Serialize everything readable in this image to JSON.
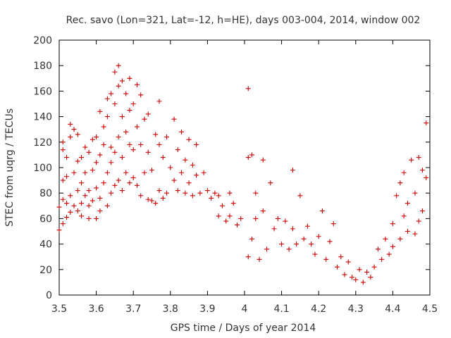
{
  "chart_data": {
    "type": "scatter",
    "title": "Rec. savo (Lon=321, Lat=-12, h=HE), days 003-004, 2014, window 002",
    "xlabel": "GPS time / Days of year 2014",
    "ylabel": "STEC from uqrg / TECUs",
    "xlim": [
      3.5,
      4.5
    ],
    "ylim": [
      0,
      200
    ],
    "xticks": [
      3.5,
      3.6,
      3.7,
      3.8,
      3.9,
      4.0,
      4.1,
      4.2,
      4.3,
      4.4,
      4.5
    ],
    "xtick_labels": [
      "3.5",
      "3.6",
      "3.7",
      "3.8",
      "3.9",
      "4",
      "4.1",
      "4.2",
      "4.3",
      "4.4",
      "4.5"
    ],
    "yticks": [
      0,
      20,
      40,
      60,
      80,
      100,
      120,
      140,
      160,
      180,
      200
    ],
    "ytick_labels": [
      "0",
      "20",
      "40",
      "60",
      "80",
      "100",
      "120",
      "140",
      "160",
      "180",
      "200"
    ],
    "grid": false,
    "marker": "plus",
    "series": [
      {
        "name": "STEC",
        "color": "#cc0000",
        "points": [
          [
            3.5,
            51
          ],
          [
            3.5,
            69
          ],
          [
            3.51,
            90
          ],
          [
            3.51,
            114
          ],
          [
            3.51,
            120
          ],
          [
            3.51,
            56
          ],
          [
            3.51,
            75
          ],
          [
            3.52,
            61
          ],
          [
            3.52,
            72
          ],
          [
            3.52,
            93
          ],
          [
            3.52,
            108
          ],
          [
            3.53,
            65
          ],
          [
            3.53,
            78
          ],
          [
            3.53,
            124
          ],
          [
            3.53,
            134
          ],
          [
            3.54,
            70
          ],
          [
            3.54,
            96
          ],
          [
            3.54,
            130
          ],
          [
            3.55,
            66
          ],
          [
            3.55,
            82
          ],
          [
            3.55,
            105
          ],
          [
            3.55,
            126
          ],
          [
            3.56,
            62
          ],
          [
            3.56,
            72
          ],
          [
            3.56,
            88
          ],
          [
            3.56,
            108
          ],
          [
            3.57,
            78
          ],
          [
            3.57,
            96
          ],
          [
            3.57,
            116
          ],
          [
            3.58,
            60
          ],
          [
            3.58,
            70
          ],
          [
            3.58,
            82
          ],
          [
            3.58,
            112
          ],
          [
            3.59,
            74
          ],
          [
            3.59,
            98
          ],
          [
            3.59,
            122
          ],
          [
            3.6,
            60
          ],
          [
            3.6,
            84
          ],
          [
            3.6,
            104
          ],
          [
            3.6,
            124
          ],
          [
            3.61,
            66
          ],
          [
            3.61,
            76
          ],
          [
            3.61,
            110
          ],
          [
            3.61,
            144
          ],
          [
            3.62,
            88
          ],
          [
            3.62,
            118
          ],
          [
            3.62,
            132
          ],
          [
            3.63,
            70
          ],
          [
            3.63,
            96
          ],
          [
            3.63,
            140
          ],
          [
            3.63,
            154
          ],
          [
            3.64,
            80
          ],
          [
            3.64,
            104
          ],
          [
            3.64,
            116
          ],
          [
            3.64,
            158
          ],
          [
            3.65,
            86
          ],
          [
            3.65,
            112
          ],
          [
            3.65,
            150
          ],
          [
            3.65,
            175
          ],
          [
            3.66,
            90
          ],
          [
            3.66,
            124
          ],
          [
            3.66,
            164
          ],
          [
            3.66,
            180
          ],
          [
            3.67,
            82
          ],
          [
            3.67,
            108
          ],
          [
            3.67,
            140
          ],
          [
            3.67,
            168
          ],
          [
            3.68,
            96
          ],
          [
            3.68,
            128
          ],
          [
            3.68,
            158
          ],
          [
            3.69,
            88
          ],
          [
            3.69,
            118
          ],
          [
            3.69,
            145
          ],
          [
            3.69,
            170
          ],
          [
            3.7,
            92
          ],
          [
            3.7,
            114
          ],
          [
            3.7,
            150
          ],
          [
            3.71,
            86
          ],
          [
            3.71,
            132
          ],
          [
            3.71,
            165
          ],
          [
            3.72,
            78
          ],
          [
            3.72,
            118
          ],
          [
            3.72,
            157
          ],
          [
            3.73,
            96
          ],
          [
            3.73,
            138
          ],
          [
            3.74,
            75
          ],
          [
            3.74,
            112
          ],
          [
            3.74,
            142
          ],
          [
            3.75,
            74
          ],
          [
            3.75,
            98
          ],
          [
            3.76,
            72
          ],
          [
            3.76,
            126
          ],
          [
            3.77,
            82
          ],
          [
            3.77,
            118
          ],
          [
            3.77,
            152
          ],
          [
            3.78,
            76
          ],
          [
            3.78,
            108
          ],
          [
            3.79,
            80
          ],
          [
            3.79,
            124
          ],
          [
            3.8,
            100
          ],
          [
            3.81,
            90
          ],
          [
            3.81,
            138
          ],
          [
            3.82,
            82
          ],
          [
            3.82,
            114
          ],
          [
            3.83,
            96
          ],
          [
            3.83,
            128
          ],
          [
            3.84,
            80
          ],
          [
            3.84,
            106
          ],
          [
            3.85,
            88
          ],
          [
            3.85,
            122
          ],
          [
            3.86,
            78
          ],
          [
            3.86,
            102
          ],
          [
            3.87,
            94
          ],
          [
            3.87,
            118
          ],
          [
            3.88,
            80
          ],
          [
            3.89,
            96
          ],
          [
            3.9,
            82
          ],
          [
            3.91,
            76
          ],
          [
            3.92,
            80
          ],
          [
            3.93,
            62
          ],
          [
            3.93,
            78
          ],
          [
            3.94,
            70
          ],
          [
            3.95,
            58
          ],
          [
            3.96,
            80
          ],
          [
            3.96,
            62
          ],
          [
            3.97,
            72
          ],
          [
            3.98,
            55
          ],
          [
            3.99,
            60
          ],
          [
            4.01,
            108
          ],
          [
            4.01,
            162
          ],
          [
            4.01,
            30
          ],
          [
            4.02,
            44
          ],
          [
            4.02,
            110
          ],
          [
            4.03,
            60
          ],
          [
            4.03,
            80
          ],
          [
            4.04,
            28
          ],
          [
            4.05,
            66
          ],
          [
            4.05,
            106
          ],
          [
            4.06,
            36
          ],
          [
            4.07,
            88
          ],
          [
            4.08,
            52
          ],
          [
            4.09,
            60
          ],
          [
            4.1,
            40
          ],
          [
            4.11,
            58
          ],
          [
            4.12,
            36
          ],
          [
            4.13,
            52
          ],
          [
            4.13,
            98
          ],
          [
            4.14,
            40
          ],
          [
            4.15,
            78
          ],
          [
            4.16,
            44
          ],
          [
            4.17,
            54
          ],
          [
            4.18,
            40
          ],
          [
            4.19,
            32
          ],
          [
            4.2,
            46
          ],
          [
            4.21,
            66
          ],
          [
            4.22,
            28
          ],
          [
            4.23,
            42
          ],
          [
            4.24,
            56
          ],
          [
            4.25,
            22
          ],
          [
            4.26,
            30
          ],
          [
            4.27,
            16
          ],
          [
            4.28,
            26
          ],
          [
            4.29,
            14
          ],
          [
            4.3,
            12
          ],
          [
            4.31,
            20
          ],
          [
            4.32,
            10
          ],
          [
            4.33,
            18
          ],
          [
            4.34,
            14
          ],
          [
            4.35,
            22
          ],
          [
            4.36,
            36
          ],
          [
            4.37,
            28
          ],
          [
            4.38,
            44
          ],
          [
            4.39,
            32
          ],
          [
            4.4,
            38
          ],
          [
            4.4,
            56
          ],
          [
            4.41,
            78
          ],
          [
            4.42,
            44
          ],
          [
            4.42,
            88
          ],
          [
            4.43,
            62
          ],
          [
            4.43,
            96
          ],
          [
            4.44,
            50
          ],
          [
            4.44,
            72
          ],
          [
            4.45,
            106
          ],
          [
            4.46,
            48
          ],
          [
            4.46,
            80
          ],
          [
            4.47,
            58
          ],
          [
            4.47,
            108
          ],
          [
            4.48,
            66
          ],
          [
            4.48,
            98
          ],
          [
            4.49,
            92
          ],
          [
            4.49,
            135
          ]
        ]
      }
    ]
  }
}
